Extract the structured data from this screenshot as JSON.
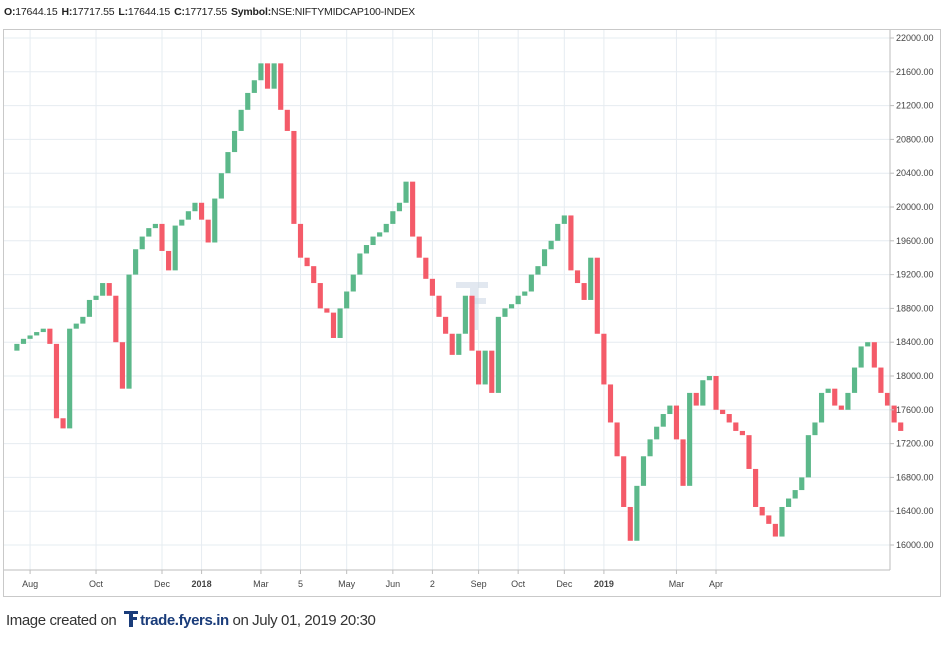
{
  "header": {
    "open_label": "O:",
    "open": "17644.15",
    "high_label": "H:",
    "high": "17717.55",
    "low_label": "L:",
    "low": "17644.15",
    "close_label": "C:",
    "close": "17717.55",
    "symbol_label": "Symbol:",
    "symbol": "NSE:NIFTYMIDCAP100-INDEX"
  },
  "footer": {
    "prefix": "Image created on",
    "site": "trade.fyers.in",
    "suffix": "on July 01, 2019 20:30"
  },
  "colors": {
    "up": "#5cb88a",
    "down": "#f45b69",
    "grid": "#e6ecf1",
    "axis": "#bdbdbd"
  },
  "chart_data": {
    "type": "line",
    "style": "line-break (three-line break) candles",
    "symbol": "NSE:NIFTYMIDCAP100-INDEX",
    "ylim": [
      15800,
      22100
    ],
    "y_ticks": [
      16000,
      16400,
      16800,
      17200,
      17600,
      18000,
      18400,
      18800,
      19200,
      19600,
      20000,
      20400,
      20800,
      21200,
      21600,
      22000
    ],
    "y_tick_labels": [
      "16000.00",
      "16400.00",
      "16800.00",
      "17200.00",
      "17600.00",
      "18000.00",
      "18400.00",
      "18800.00",
      "19200.00",
      "19600.00",
      "20000.00",
      "20400.00",
      "20800.00",
      "21200.00",
      "21600.00",
      "22000.00"
    ],
    "x_ticks": [
      {
        "label": "Aug",
        "idx": 3,
        "bold": false
      },
      {
        "label": "Oct",
        "idx": 13,
        "bold": false
      },
      {
        "label": "Dec",
        "idx": 23,
        "bold": false
      },
      {
        "label": "2018",
        "idx": 29,
        "bold": true
      },
      {
        "label": "Mar",
        "idx": 38,
        "bold": false
      },
      {
        "label": "5",
        "idx": 44,
        "bold": false
      },
      {
        "label": "May",
        "idx": 51,
        "bold": false
      },
      {
        "label": "Jun",
        "idx": 58,
        "bold": false
      },
      {
        "label": "2",
        "idx": 64,
        "bold": false
      },
      {
        "label": "Sep",
        "idx": 71,
        "bold": false
      },
      {
        "label": "Oct",
        "idx": 77,
        "bold": false
      },
      {
        "label": "Dec",
        "idx": 84,
        "bold": false
      },
      {
        "label": "2019",
        "idx": 90,
        "bold": true
      },
      {
        "label": "Mar",
        "idx": 101,
        "bold": false
      },
      {
        "label": "Apr",
        "idx": 107,
        "bold": false
      }
    ],
    "close": [
      18300,
      18380,
      18440,
      18480,
      18520,
      18560,
      18380,
      17500,
      17380,
      18560,
      18620,
      18700,
      18900,
      18950,
      19100,
      18950,
      18400,
      17850,
      19200,
      19500,
      19650,
      19750,
      19800,
      19480,
      19250,
      19780,
      19850,
      19950,
      20050,
      19850,
      19580,
      20100,
      20400,
      20650,
      20900,
      21150,
      21350,
      21500,
      21700,
      21400,
      21700,
      21150,
      20900,
      19800,
      19400,
      19300,
      19100,
      18800,
      18750,
      18450,
      18800,
      19000,
      19200,
      19450,
      19550,
      19650,
      19700,
      19800,
      19950,
      20050,
      20300,
      19650,
      19400,
      19150,
      18950,
      18700,
      18500,
      18250,
      18500,
      18950,
      18300,
      17900,
      18300,
      17800,
      18700,
      18800,
      18850,
      18950,
      19000,
      19200,
      19300,
      19500,
      19600,
      19800,
      19900,
      19250,
      19100,
      18900,
      19400,
      18500,
      17900,
      17450,
      17050,
      16450,
      16050,
      16700,
      17050,
      17250,
      17400,
      17550,
      17650,
      17250,
      16700,
      17800,
      17650,
      17950,
      18000,
      17600,
      17550,
      17450,
      17350,
      17300,
      16900,
      16450,
      16350,
      16250,
      16100,
      16450,
      16550,
      16650,
      16800,
      17300,
      17450,
      17800,
      17850,
      17650,
      17600,
      17800,
      18100,
      18350,
      18400,
      18100,
      17800,
      17650,
      17450,
      17350
    ]
  }
}
